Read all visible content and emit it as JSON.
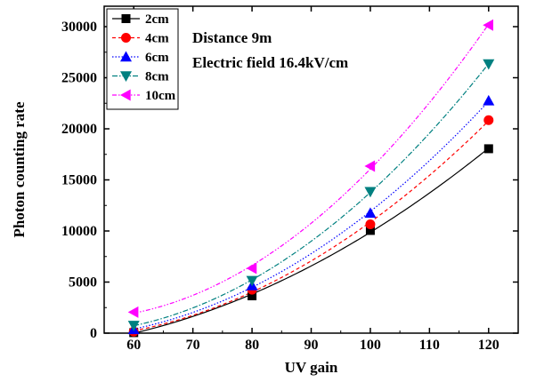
{
  "chart_data": {
    "type": "line",
    "xlabel": "UV gain",
    "ylabel": "Photon counting rate",
    "xlim": [
      55,
      125
    ],
    "ylim": [
      0,
      32000
    ],
    "xticks": [
      60,
      70,
      80,
      90,
      100,
      110,
      120
    ],
    "yticks": [
      0,
      5000,
      10000,
      15000,
      20000,
      25000,
      30000
    ],
    "annotations": [
      "Distance 9m",
      "Electric field 16.4kV/cm"
    ],
    "legend_position": "top-left",
    "grid": false,
    "x": [
      60,
      80,
      100,
      120
    ],
    "series": [
      {
        "name": "2cm",
        "values": [
          50,
          3650,
          10050,
          18050
        ],
        "color": "#000000",
        "marker": "square",
        "dash": ""
      },
      {
        "name": "4cm",
        "values": [
          150,
          4250,
          10650,
          20850
        ],
        "color": "#ff0000",
        "marker": "circle",
        "dash": "4,3"
      },
      {
        "name": "6cm",
        "values": [
          350,
          4650,
          11750,
          22750
        ],
        "color": "#0000ff",
        "marker": "triangle-up",
        "dash": "1.5,2"
      },
      {
        "name": "8cm",
        "values": [
          750,
          5150,
          13850,
          26350
        ],
        "color": "#008080",
        "marker": "triangle-down",
        "dash": "6,2,1.5,2"
      },
      {
        "name": "10cm",
        "values": [
          2050,
          6350,
          16350,
          30150
        ],
        "color": "#ff00ff",
        "marker": "triangle-left",
        "dash": "5,2,1.5,2,1.5,2"
      }
    ]
  }
}
